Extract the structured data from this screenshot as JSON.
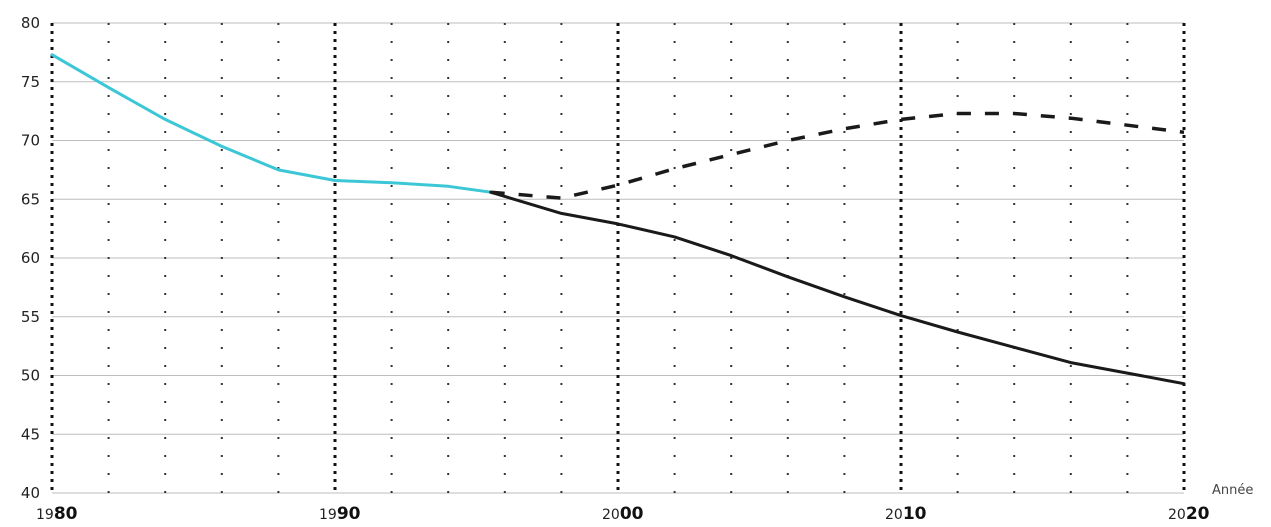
{
  "chart_data": {
    "type": "line",
    "xlabel": "Année",
    "ylabel": "",
    "title": "",
    "xlim": [
      1980,
      2020
    ],
    "ylim": [
      40,
      80
    ],
    "y_ticks": [
      "40",
      "45",
      "50",
      "55",
      "60",
      "65",
      "70",
      "75",
      "80"
    ],
    "x_ticks": [
      {
        "value": 1980,
        "prefix": "19",
        "suffix": "80"
      },
      {
        "value": 1990,
        "prefix": "19",
        "suffix": "90"
      },
      {
        "value": 2000,
        "prefix": "20",
        "suffix": "00"
      },
      {
        "value": 2010,
        "prefix": "20",
        "suffix": "10"
      },
      {
        "value": 2020,
        "prefix": "20",
        "suffix": "20"
      }
    ],
    "grid": true,
    "series": [
      {
        "style": "solid",
        "color": "#3cc7d6",
        "x": [
          1980,
          1982,
          1984,
          1986,
          1988,
          1990,
          1992,
          1994,
          1995.5
        ],
        "y": [
          77.3,
          74.5,
          71.8,
          69.5,
          67.5,
          66.6,
          66.4,
          66.1,
          65.6
        ]
      },
      {
        "style": "solid",
        "color": "#1a1a1a",
        "x": [
          1995.5,
          1998,
          2000,
          2002,
          2004,
          2006,
          2008,
          2010,
          2012,
          2014,
          2016,
          2018,
          2020
        ],
        "y": [
          65.6,
          63.8,
          62.9,
          61.8,
          60.2,
          58.4,
          56.7,
          55.1,
          53.7,
          52.4,
          51.1,
          50.2,
          49.3
        ]
      },
      {
        "style": "dashed",
        "color": "#1a1a1a",
        "x": [
          1995.5,
          1998,
          2000,
          2002,
          2004,
          2006,
          2008,
          2010,
          2012,
          2014,
          2016,
          2018,
          2020
        ],
        "y": [
          65.6,
          65.1,
          66.2,
          67.6,
          68.8,
          70.0,
          71.0,
          71.8,
          72.3,
          72.3,
          71.9,
          71.3,
          70.7
        ]
      }
    ]
  }
}
